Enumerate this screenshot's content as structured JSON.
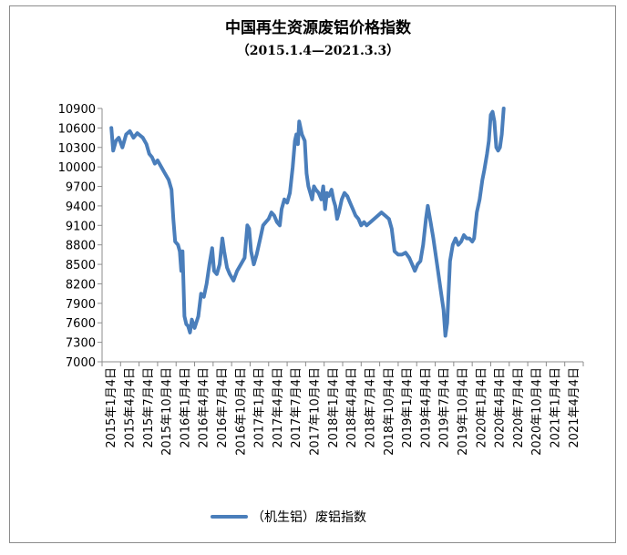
{
  "chart_data": {
    "type": "line",
    "title": "中国再生资源废铝价格指数",
    "subtitle": "（2015.1.4—2021.3.3）",
    "xlabel": "",
    "ylabel": "",
    "ylim": [
      7000,
      10900
    ],
    "yticks": [
      "10900",
      "10600",
      "10300",
      "10000",
      "9700",
      "9400",
      "9100",
      "8800",
      "8500",
      "8200",
      "7900",
      "7600",
      "7300",
      "7000"
    ],
    "xticks": [
      "2015年1月4日",
      "2015年4月4日",
      "2015年7月4日",
      "2015年10月4日",
      "2016年1月4日",
      "2016年4月4日",
      "2016年7月4日",
      "2016年10月4日",
      "2017年1月4日",
      "2017年4月4日",
      "2017年7月4日",
      "2017年10月4日",
      "2018年1月4日",
      "2018年4月4日",
      "2018年7月4日",
      "2018年10月4日",
      "2019年1月4日",
      "2019年4月4日",
      "2019年7月4日",
      "2019年10月4日",
      "2020年1月4日",
      "2020年4月4日",
      "2020年7月4日",
      "2020年10月4日",
      "2021年1月4日",
      "2021年4月4日"
    ],
    "grid": false,
    "legend_position": "bottom",
    "color": "#4a7ebb",
    "series": [
      {
        "name": "（机生铝）废铝指数",
        "values": [
          [
            0.0,
            10600
          ],
          [
            0.1,
            10250
          ],
          [
            0.25,
            10400
          ],
          [
            0.4,
            10450
          ],
          [
            0.6,
            10300
          ],
          [
            0.8,
            10500
          ],
          [
            1.0,
            10550
          ],
          [
            1.2,
            10450
          ],
          [
            1.4,
            10520
          ],
          [
            1.7,
            10450
          ],
          [
            1.9,
            10350
          ],
          [
            2.05,
            10200
          ],
          [
            2.2,
            10150
          ],
          [
            2.35,
            10050
          ],
          [
            2.5,
            10100
          ],
          [
            2.7,
            10000
          ],
          [
            2.9,
            9900
          ],
          [
            3.1,
            9800
          ],
          [
            3.25,
            9650
          ],
          [
            3.35,
            9200
          ],
          [
            3.45,
            8850
          ],
          [
            3.6,
            8800
          ],
          [
            3.7,
            8700
          ],
          [
            3.78,
            8400
          ],
          [
            3.85,
            8700
          ],
          [
            3.95,
            7700
          ],
          [
            4.05,
            7580
          ],
          [
            4.15,
            7550
          ],
          [
            4.25,
            7450
          ],
          [
            4.35,
            7650
          ],
          [
            4.5,
            7520
          ],
          [
            4.7,
            7700
          ],
          [
            4.85,
            8050
          ],
          [
            5.0,
            8000
          ],
          [
            5.15,
            8200
          ],
          [
            5.3,
            8500
          ],
          [
            5.45,
            8750
          ],
          [
            5.55,
            8400
          ],
          [
            5.7,
            8350
          ],
          [
            5.85,
            8500
          ],
          [
            6.0,
            8900
          ],
          [
            6.1,
            8700
          ],
          [
            6.25,
            8450
          ],
          [
            6.4,
            8350
          ],
          [
            6.6,
            8250
          ],
          [
            6.8,
            8400
          ],
          [
            7.0,
            8500
          ],
          [
            7.2,
            8600
          ],
          [
            7.35,
            9100
          ],
          [
            7.45,
            9050
          ],
          [
            7.55,
            8700
          ],
          [
            7.7,
            8500
          ],
          [
            7.85,
            8650
          ],
          [
            8.05,
            8900
          ],
          [
            8.2,
            9100
          ],
          [
            8.35,
            9150
          ],
          [
            8.5,
            9200
          ],
          [
            8.65,
            9300
          ],
          [
            8.8,
            9250
          ],
          [
            8.95,
            9150
          ],
          [
            9.1,
            9100
          ],
          [
            9.2,
            9350
          ],
          [
            9.35,
            9500
          ],
          [
            9.5,
            9450
          ],
          [
            9.65,
            9600
          ],
          [
            9.8,
            10000
          ],
          [
            9.92,
            10400
          ],
          [
            10.0,
            10500
          ],
          [
            10.08,
            10350
          ],
          [
            10.15,
            10700
          ],
          [
            10.3,
            10500
          ],
          [
            10.45,
            10400
          ],
          [
            10.55,
            9900
          ],
          [
            10.65,
            9700
          ],
          [
            10.75,
            9600
          ],
          [
            10.85,
            9500
          ],
          [
            10.95,
            9700
          ],
          [
            11.05,
            9650
          ],
          [
            11.2,
            9600
          ],
          [
            11.35,
            9500
          ],
          [
            11.45,
            9700
          ],
          [
            11.55,
            9350
          ],
          [
            11.65,
            9600
          ],
          [
            11.75,
            9550
          ],
          [
            11.9,
            9650
          ],
          [
            12.0,
            9500
          ],
          [
            12.1,
            9400
          ],
          [
            12.2,
            9200
          ],
          [
            12.3,
            9300
          ],
          [
            12.45,
            9500
          ],
          [
            12.6,
            9600
          ],
          [
            12.75,
            9550
          ],
          [
            12.9,
            9450
          ],
          [
            13.05,
            9350
          ],
          [
            13.2,
            9250
          ],
          [
            13.35,
            9200
          ],
          [
            13.5,
            9100
          ],
          [
            13.65,
            9150
          ],
          [
            13.8,
            9100
          ],
          [
            14.0,
            9150
          ],
          [
            14.2,
            9200
          ],
          [
            14.4,
            9250
          ],
          [
            14.6,
            9300
          ],
          [
            14.8,
            9250
          ],
          [
            15.0,
            9200
          ],
          [
            15.15,
            9050
          ],
          [
            15.3,
            8700
          ],
          [
            15.5,
            8650
          ],
          [
            15.7,
            8650
          ],
          [
            15.9,
            8680
          ],
          [
            16.1,
            8600
          ],
          [
            16.25,
            8500
          ],
          [
            16.4,
            8400
          ],
          [
            16.55,
            8500
          ],
          [
            16.7,
            8550
          ],
          [
            16.85,
            8800
          ],
          [
            17.0,
            9200
          ],
          [
            17.1,
            9400
          ],
          [
            17.25,
            9150
          ],
          [
            17.4,
            8900
          ],
          [
            17.6,
            8500
          ],
          [
            17.8,
            8100
          ],
          [
            17.95,
            7800
          ],
          [
            18.05,
            7400
          ],
          [
            18.15,
            7600
          ],
          [
            18.3,
            8550
          ],
          [
            18.45,
            8800
          ],
          [
            18.6,
            8900
          ],
          [
            18.75,
            8800
          ],
          [
            18.9,
            8850
          ],
          [
            19.05,
            8950
          ],
          [
            19.2,
            8900
          ],
          [
            19.35,
            8900
          ],
          [
            19.5,
            8850
          ],
          [
            19.6,
            8900
          ],
          [
            19.75,
            9300
          ],
          [
            19.9,
            9500
          ],
          [
            20.05,
            9800
          ],
          [
            20.15,
            9950
          ],
          [
            20.3,
            10200
          ],
          [
            20.4,
            10400
          ],
          [
            20.5,
            10800
          ],
          [
            20.6,
            10850
          ],
          [
            20.7,
            10700
          ],
          [
            20.8,
            10300
          ],
          [
            20.9,
            10250
          ],
          [
            21.0,
            10300
          ],
          [
            21.1,
            10500
          ],
          [
            21.2,
            10900
          ]
        ]
      }
    ]
  }
}
